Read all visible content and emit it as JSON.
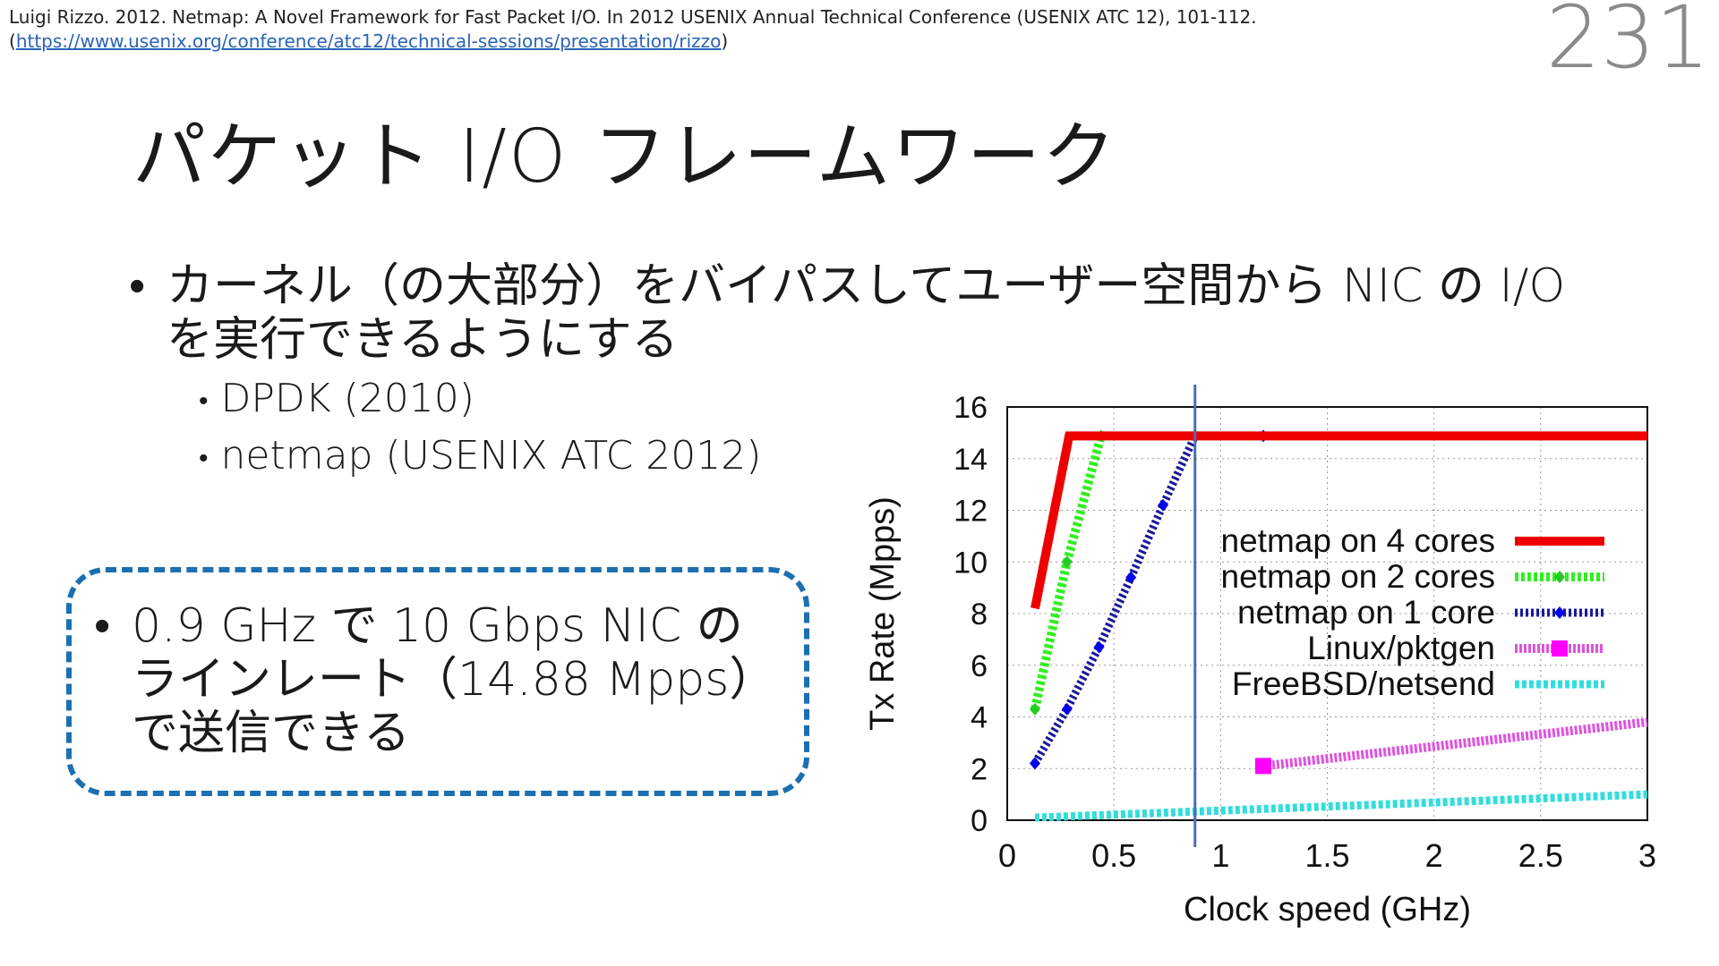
{
  "citation": {
    "text": "Luigi Rizzo. 2012. Netmap: A Novel Framework for Fast Packet I/O. In 2012 USENIX Annual Technical Conference (USENIX ATC 12), 101-112.(",
    "link": "https://www.usenix.org/conference/atc12/technical-sessions/presentation/rizzo",
    "close": ")"
  },
  "page_number": "231",
  "title": "パケット I/O フレームワーク",
  "bullets": {
    "main": "カーネル（の大部分）をバイパスしてユーザー空間から NIC の I/O を実行できるようにする",
    "sub": [
      "DPDK (2010)",
      "netmap (USENIX ATC 2012)"
    ]
  },
  "callout": {
    "text": "0.9 GHz で 10 Gbps NIC の ラインレート（14.88 Mpps） で送信できる"
  },
  "chart_data": {
    "type": "line",
    "xlabel": "Clock speed (GHz)",
    "ylabel": "Tx Rate (Mpps)",
    "xlim": [
      0,
      3
    ],
    "ylim": [
      0,
      16
    ],
    "xticks": [
      "0",
      "0.5",
      "1",
      "1.5",
      "2",
      "2.5",
      "3"
    ],
    "yticks": [
      "0",
      "2",
      "4",
      "6",
      "8",
      "10",
      "12",
      "14",
      "16"
    ],
    "grid": true,
    "legend_position": "center-right",
    "marker_x": 0.88,
    "series": [
      {
        "name": "netmap on 4 cores",
        "color": "#ee0000",
        "x": [
          0.13,
          0.29,
          3.0
        ],
        "y": [
          8.2,
          14.88,
          14.88
        ]
      },
      {
        "name": "netmap on 2 cores",
        "color": "#33ee22",
        "x": [
          0.13,
          0.28,
          0.44,
          0.9,
          3.0
        ],
        "y": [
          4.3,
          10.0,
          14.88,
          14.88,
          14.88
        ]
      },
      {
        "name": "netmap on 1 core",
        "color": "#1a1a99",
        "x": [
          0.13,
          0.28,
          0.43,
          0.58,
          0.73,
          0.88,
          1.2,
          3.0
        ],
        "y": [
          2.2,
          4.3,
          6.7,
          9.4,
          12.2,
          14.88,
          14.88,
          14.88
        ]
      },
      {
        "name": "Linux/pktgen",
        "color": "#dd55dd",
        "x": [
          1.2,
          3.0
        ],
        "y": [
          2.1,
          3.8
        ]
      },
      {
        "name": "FreeBSD/netsend",
        "color": "#33dddd",
        "x": [
          0.13,
          3.0
        ],
        "y": [
          0.1,
          1.0
        ]
      }
    ]
  }
}
